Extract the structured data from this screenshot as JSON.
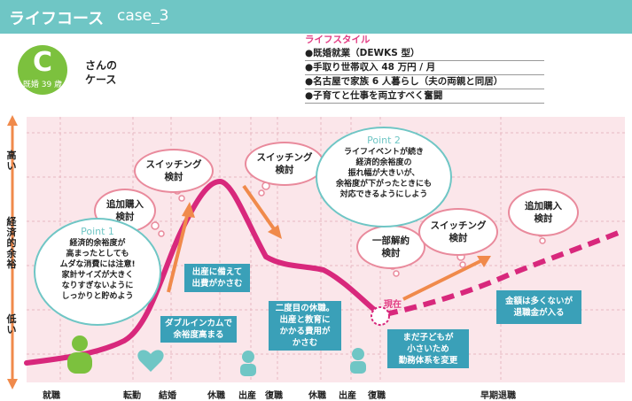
{
  "header": {
    "title": "ライフコース",
    "case_id": "case_3"
  },
  "badge": {
    "letter": "C",
    "sub": "既婚 39 歳"
  },
  "case_label": [
    "さんの",
    "ケース"
  ],
  "lifestyle": {
    "title": "ライフスタイル",
    "items": [
      "●既婚就業（DEWKS 型）",
      "●手取り世帯収入 48 万円 / 月",
      "●名古屋で家族 6 人暮らし（夫の両親と同居）",
      "●子育てと仕事を両立すべく奮闘"
    ]
  },
  "axis": {
    "high": "高い",
    "mid": "経済的余裕",
    "low": "低い"
  },
  "x_events": [
    "就職",
    "転勤",
    "結婚",
    "休職",
    "出産",
    "復職",
    "休職",
    "出産",
    "復職",
    "早期退職"
  ],
  "bubbles": {
    "tsuika1": [
      "追加購入",
      "検討"
    ],
    "switch1": [
      "スイッチング",
      "検討"
    ],
    "switch2": [
      "スイッチング",
      "検討"
    ],
    "kaiyaku": [
      "一部解約",
      "検討"
    ],
    "switch3": [
      "スイッチング",
      "検討"
    ],
    "tsuika2": [
      "追加購入",
      "検討"
    ]
  },
  "point1": {
    "label": "Point 1",
    "lines": [
      "経済的余裕度が",
      "高まったとしても",
      "ムダな消費には注意!",
      "家計サイズが大きく",
      "なりすぎないように",
      "しっかりと貯めよう"
    ]
  },
  "point2": {
    "label": "Point 2",
    "lines": [
      "ライフイベントが続き",
      "経済的余裕度の",
      "振れ幅が大きいが、",
      "余裕度が下がったときにも",
      "対応できるようにしよう"
    ]
  },
  "notes": {
    "double": [
      "ダブルインカムで",
      "余裕度高まる"
    ],
    "shussan": [
      "出産に備えて",
      "出費がかさむ"
    ],
    "kyushoku": [
      "二度目の休職。",
      "出産と教育に",
      "かかる費用が",
      "かさむ"
    ],
    "kinmu": [
      "まだ子どもが",
      "小さいため",
      "勤務体系を変更"
    ],
    "taishoku": [
      "金額は多くないが",
      "退職金が入る"
    ]
  },
  "now_label": "現在",
  "colors": {
    "teal": "#6fc6c5",
    "magenta": "#d8287c",
    "orange": "#f08a4b",
    "plot_bg": "#fbe6ea",
    "box": "#3aa0b8",
    "green": "#7cc13e"
  }
}
